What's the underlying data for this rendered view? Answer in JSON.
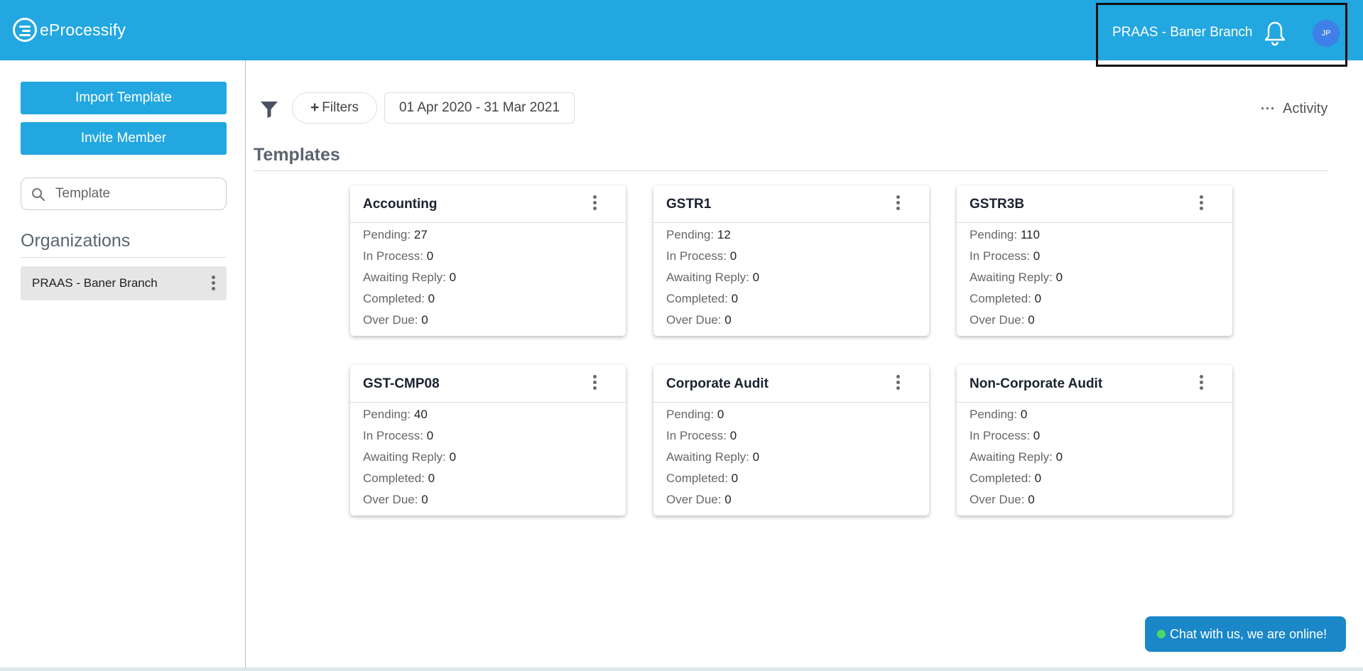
{
  "header": {
    "app_name": "eProcessify",
    "branch_name": "PRAAS - Baner Branch",
    "avatar_initials": "JP",
    "bg_color": "#22a7e0"
  },
  "sidebar": {
    "import_button": "Import Template",
    "invite_button": "Invite Member",
    "search": {
      "placeholder": "Template",
      "value": ""
    },
    "organizations_title": "Organizations",
    "organizations": [
      {
        "label": "PRAAS - Baner Branch"
      }
    ]
  },
  "toolbar": {
    "filters_label": "Filters",
    "date_range": "01 Apr 2020 - 31 Mar 2021",
    "activity_label": "Activity"
  },
  "templates": {
    "title": "Templates",
    "stat_labels": {
      "pending": "Pending:",
      "in_process": "In Process:",
      "awaiting_reply": "Awaiting Reply:",
      "completed": "Completed:",
      "over_due": "Over Due:"
    },
    "cards": [
      {
        "title": "Accounting",
        "pending": "27",
        "in_process": "0",
        "awaiting_reply": "0",
        "completed": "0",
        "over_due": "0"
      },
      {
        "title": "GSTR1",
        "pending": "12",
        "in_process": "0",
        "awaiting_reply": "0",
        "completed": "0",
        "over_due": "0"
      },
      {
        "title": "GSTR3B",
        "pending": "110",
        "in_process": "0",
        "awaiting_reply": "0",
        "completed": "0",
        "over_due": "0"
      },
      {
        "title": "GST-CMP08",
        "pending": "40",
        "in_process": "0",
        "awaiting_reply": "0",
        "completed": "0",
        "over_due": "0"
      },
      {
        "title": "Corporate Audit",
        "pending": "0",
        "in_process": "0",
        "awaiting_reply": "0",
        "completed": "0",
        "over_due": "0"
      },
      {
        "title": "Non-Corporate Audit",
        "pending": "0",
        "in_process": "0",
        "awaiting_reply": "0",
        "completed": "0",
        "over_due": "0"
      }
    ]
  },
  "chat": {
    "label": "Chat with us, we are online!"
  }
}
